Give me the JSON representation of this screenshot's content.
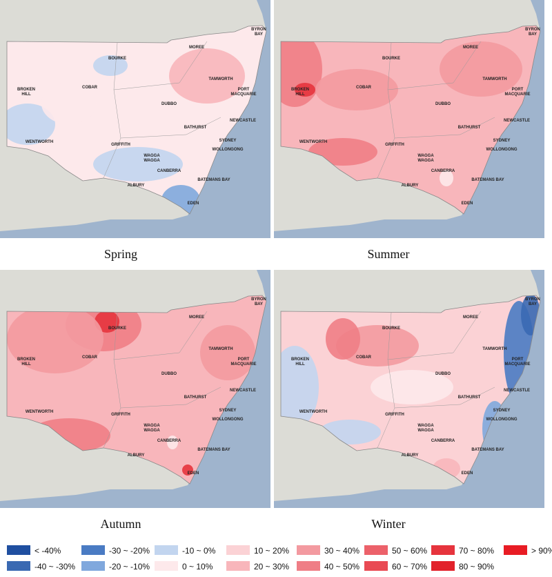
{
  "panels": [
    {
      "caption": "Spring"
    },
    {
      "caption": "Summer"
    },
    {
      "caption": "Autumn"
    },
    {
      "caption": "Winter"
    }
  ],
  "towns": [
    {
      "lines": [
        "BYRON",
        "BAY"
      ]
    },
    {
      "lines": [
        "MOREE"
      ]
    },
    {
      "lines": [
        "BOURKE"
      ]
    },
    {
      "lines": [
        "TAMWORTH"
      ]
    },
    {
      "lines": [
        "PORT",
        "MACQUARIE"
      ]
    },
    {
      "lines": [
        "BROKEN",
        "HILL"
      ]
    },
    {
      "lines": [
        "COBAR"
      ]
    },
    {
      "lines": [
        "DUBBO"
      ]
    },
    {
      "lines": [
        "NEWCASTLE"
      ]
    },
    {
      "lines": [
        "BATHURST"
      ]
    },
    {
      "lines": [
        "SYDNEY"
      ]
    },
    {
      "lines": [
        "WENTWORTH"
      ]
    },
    {
      "lines": [
        "GRIFFITH"
      ]
    },
    {
      "lines": [
        "WOLLONGONG"
      ]
    },
    {
      "lines": [
        "WAGGA",
        "WAGGA"
      ]
    },
    {
      "lines": [
        "CANBERRA"
      ]
    },
    {
      "lines": [
        "BATEMANS BAY"
      ]
    },
    {
      "lines": [
        "ALBURY"
      ]
    },
    {
      "lines": [
        "EDEN"
      ]
    }
  ],
  "legend": [
    {
      "label": "< -40%",
      "color": "#1f4fa0"
    },
    {
      "label": "-40 ~ -30%",
      "color": "#3a69b2"
    },
    {
      "label": "-30 ~ -20%",
      "color": "#4a7bc3"
    },
    {
      "label": "-20 ~ -10%",
      "color": "#80a8dd"
    },
    {
      "label": "-10 ~ 0%",
      "color": "#c2d5ef"
    },
    {
      "label": "0 ~ 10%",
      "color": "#fde9eb"
    },
    {
      "label": "10 ~ 20%",
      "color": "#fbd2d5"
    },
    {
      "label": "20 ~ 30%",
      "color": "#f8b6bb"
    },
    {
      "label": "30 ~ 40%",
      "color": "#f39aa0"
    },
    {
      "label": "40 ~ 50%",
      "color": "#ef7e86"
    },
    {
      "label": "50 ~ 60%",
      "color": "#ec616a"
    },
    {
      "label": "60 ~ 70%",
      "color": "#e94a53"
    },
    {
      "label": "70 ~ 80%",
      "color": "#e6343d"
    },
    {
      "label": "80 ~ 90%",
      "color": "#e2222b"
    },
    {
      "label": "> 90%",
      "color": "#e81c24"
    }
  ]
}
